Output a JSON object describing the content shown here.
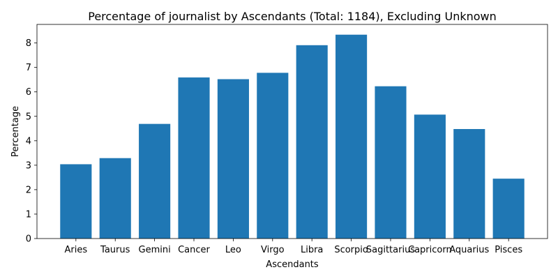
{
  "chart_data": {
    "type": "bar",
    "title": "Percentage of journalist by Ascendants (Total: 1184), Excluding Unknown",
    "xlabel": "Ascendants",
    "ylabel": "Percentage",
    "categories": [
      "Aries",
      "Taurus",
      "Gemini",
      "Cancer",
      "Leo",
      "Virgo",
      "Libra",
      "Scorpio",
      "Sagittarius",
      "Capricorn",
      "Aquarius",
      "Pisces"
    ],
    "values": [
      3.04,
      3.29,
      4.69,
      6.59,
      6.52,
      6.78,
      7.91,
      8.34,
      6.23,
      5.07,
      4.48,
      2.45
    ],
    "ylim": [
      0,
      8.76
    ],
    "yticks": [
      0,
      1,
      2,
      3,
      4,
      5,
      6,
      7,
      8
    ],
    "bar_color": "#1f77b4",
    "grid": false,
    "legend": "none"
  }
}
